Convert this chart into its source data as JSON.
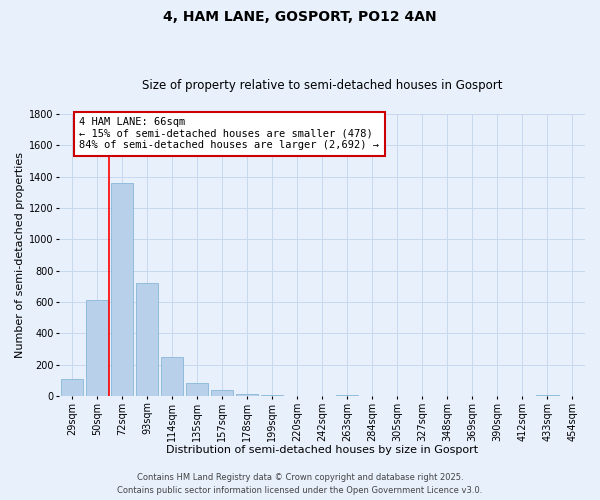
{
  "title": "4, HAM LANE, GOSPORT, PO12 4AN",
  "subtitle": "Size of property relative to semi-detached houses in Gosport",
  "xlabel": "Distribution of semi-detached houses by size in Gosport",
  "ylabel": "Number of semi-detached properties",
  "bar_labels": [
    "29sqm",
    "50sqm",
    "72sqm",
    "93sqm",
    "114sqm",
    "135sqm",
    "157sqm",
    "178sqm",
    "199sqm",
    "220sqm",
    "242sqm",
    "263sqm",
    "284sqm",
    "305sqm",
    "327sqm",
    "348sqm",
    "369sqm",
    "390sqm",
    "412sqm",
    "433sqm",
    "454sqm"
  ],
  "bar_values": [
    110,
    615,
    1360,
    720,
    250,
    80,
    35,
    10,
    5,
    0,
    0,
    5,
    0,
    0,
    0,
    0,
    0,
    0,
    0,
    5,
    0
  ],
  "bar_color": "#b8d0ea",
  "bar_edge_color": "#7aafd4",
  "grid_color": "#c8d8ee",
  "background_color": "#e8f0fc",
  "vline_color": "red",
  "vline_x_index": 1.5,
  "ylim": [
    0,
    1800
  ],
  "yticks": [
    0,
    200,
    400,
    600,
    800,
    1000,
    1200,
    1400,
    1600,
    1800
  ],
  "annotation_title": "4 HAM LANE: 66sqm",
  "annotation_line1": "← 15% of semi-detached houses are smaller (478)",
  "annotation_line2": "84% of semi-detached houses are larger (2,692) →",
  "annotation_box_color": "#ffffff",
  "annotation_box_edge": "#cc0000",
  "footer1": "Contains HM Land Registry data © Crown copyright and database right 2025.",
  "footer2": "Contains public sector information licensed under the Open Government Licence v3.0.",
  "title_fontsize": 10,
  "subtitle_fontsize": 8.5,
  "axis_label_fontsize": 8,
  "tick_fontsize": 7,
  "annotation_fontsize": 7.5,
  "footer_fontsize": 6
}
